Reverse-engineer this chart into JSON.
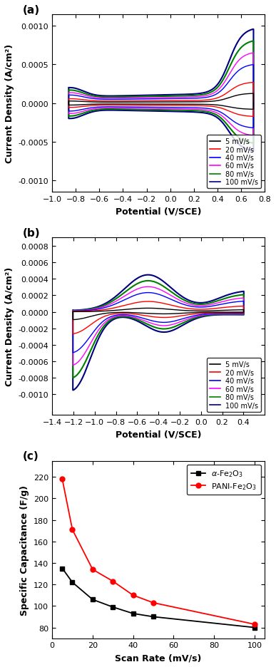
{
  "panel_a": {
    "xlabel": "Potential (V/SCE)",
    "ylabel": "Current Density (A/cm²)",
    "xlim": [
      -1.0,
      0.8
    ],
    "ylim": [
      -0.00115,
      0.00115
    ],
    "yticks": [
      -0.001,
      -0.0005,
      0.0,
      0.0005,
      0.001
    ],
    "xticks": [
      -1.0,
      -0.8,
      -0.6,
      -0.4,
      -0.2,
      0.0,
      0.2,
      0.4,
      0.6,
      0.8
    ],
    "colors": [
      "black",
      "red",
      "blue",
      "magenta",
      "green",
      "navy"
    ],
    "labels": [
      "5 mV/s",
      "20 mV/s",
      "40 mV/s",
      "60 mV/s",
      "80 mV/s",
      "100 mV/s"
    ],
    "scales": [
      0.13,
      0.28,
      0.52,
      0.68,
      0.84,
      1.0
    ],
    "v_min": -0.85,
    "v_max": 0.7
  },
  "panel_b": {
    "xlabel": "Potential (V/SCE)",
    "ylabel": "Current Density (A/cm²)",
    "xlim": [
      -1.4,
      0.6
    ],
    "ylim": [
      -0.00125,
      0.0009
    ],
    "yticks": [
      -0.001,
      -0.0008,
      -0.0006,
      -0.0004,
      -0.0002,
      0.0,
      0.0002,
      0.0004,
      0.0006,
      0.0008
    ],
    "xticks": [
      -1.4,
      -1.2,
      -1.0,
      -0.8,
      -0.6,
      -0.4,
      -0.2,
      0.0,
      0.2,
      0.4
    ],
    "colors": [
      "black",
      "red",
      "blue",
      "magenta",
      "green",
      "navy"
    ],
    "labels": [
      "5 mV/s",
      "20 mV/s",
      "40 mV/s",
      "60 mV/s",
      "80 mV/s",
      "100 mV/s"
    ],
    "scales": [
      0.1,
      0.28,
      0.52,
      0.68,
      0.84,
      1.0
    ],
    "v_min": -1.2,
    "v_max": 0.4
  },
  "panel_c": {
    "xlabel": "Scan Rate (mV/s)",
    "ylabel": "Specific Capacitance (F/g)",
    "xlim": [
      0,
      105
    ],
    "ylim": [
      70,
      235
    ],
    "xticks": [
      0,
      20,
      40,
      60,
      80,
      100
    ],
    "yticks": [
      80,
      100,
      120,
      140,
      160,
      180,
      200,
      220
    ],
    "fe2o3_x": [
      5,
      10,
      20,
      30,
      40,
      50,
      100
    ],
    "fe2o3_y": [
      135,
      122,
      106,
      99,
      93,
      90,
      80
    ],
    "pani_x": [
      5,
      10,
      20,
      30,
      40,
      50,
      100
    ],
    "pani_y": [
      218,
      171,
      134,
      123,
      110,
      103,
      83
    ],
    "fe2o3_color": "black",
    "pani_color": "red"
  }
}
